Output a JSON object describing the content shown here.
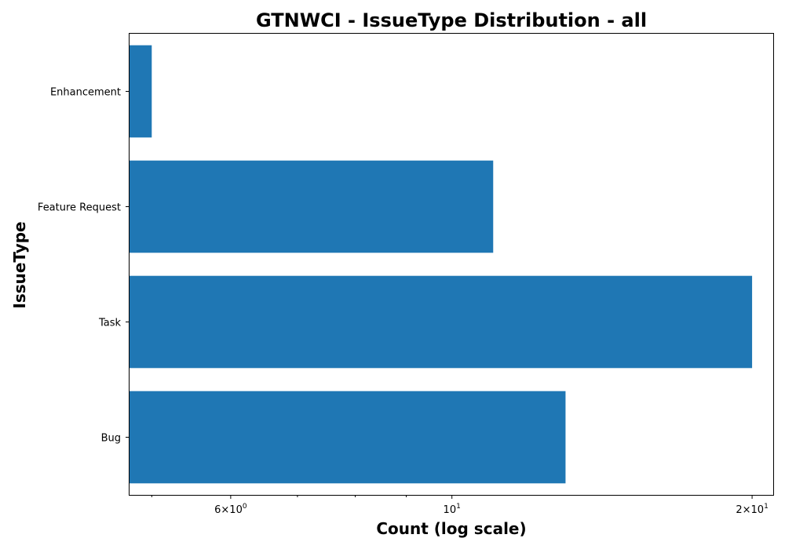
{
  "chart_data": {
    "type": "bar",
    "orientation": "horizontal",
    "title": "GTNWCI - IssueType Distribution - all",
    "xlabel": "Count (log scale)",
    "ylabel": "IssueType",
    "x_scale": "log",
    "xlim": [
      4.75,
      21
    ],
    "categories": [
      "Bug",
      "Task",
      "Feature Request",
      "Enhancement"
    ],
    "values": [
      13,
      20,
      11,
      5
    ],
    "x_ticks": [
      {
        "value": 6,
        "base": "6",
        "exp": "0"
      },
      {
        "value": 10,
        "base": "10",
        "exp": "1"
      },
      {
        "value": 20,
        "base": "2",
        "exp": "1"
      }
    ],
    "x_minor_ticks": [
      5,
      7,
      8,
      9
    ],
    "bar_color": "#1f77b4",
    "grid": false,
    "legend": "none"
  }
}
